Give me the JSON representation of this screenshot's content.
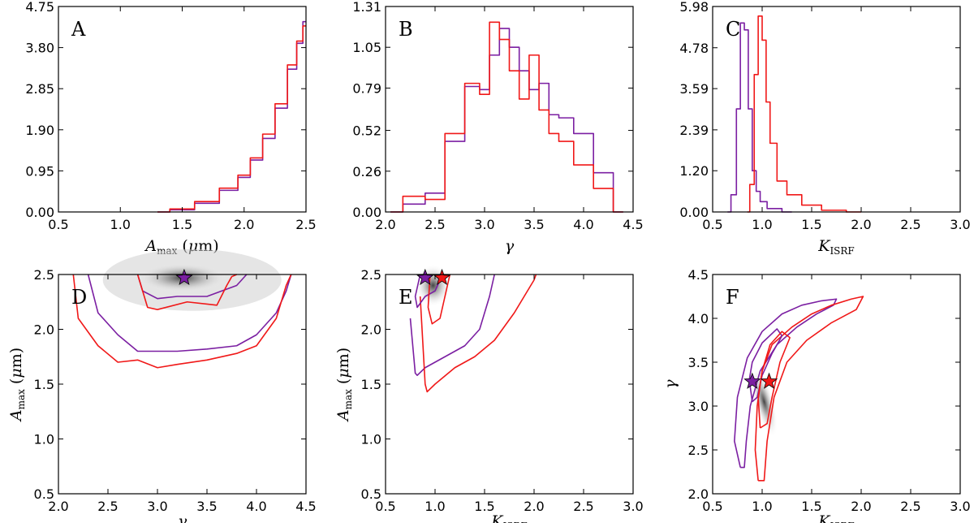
{
  "colors": {
    "purple": "#7b1fa2",
    "red": "#f01818",
    "frame": "#000000"
  },
  "axis_labels": {
    "amax_sym": "A",
    "amax_sub": "max",
    "amax_unit_open": " (",
    "amax_unit_mu": "μ",
    "amax_unit_rest": "m)",
    "gamma": "γ",
    "kisrf_sym": "K",
    "kisrf_sub": "ISRF"
  },
  "chart_data": [
    {
      "id": "A",
      "type": "line",
      "panel_label": "A",
      "xlim": [
        0.5,
        2.5
      ],
      "ylim": [
        0,
        4.75
      ],
      "xticks": [
        "0.5",
        "1.0",
        "1.5",
        "2.0",
        "2.5"
      ],
      "yticks": [
        "0.00",
        "0.95",
        "1.90",
        "2.85",
        "3.80",
        "4.75"
      ],
      "series": [
        {
          "name": "purple",
          "color": "purple",
          "x": [
            1.3,
            1.5,
            1.7,
            1.9,
            2.0,
            2.1,
            2.2,
            2.3,
            2.4,
            2.45,
            2.5
          ],
          "y": [
            0.0,
            0.05,
            0.2,
            0.5,
            0.8,
            1.2,
            1.7,
            2.4,
            3.3,
            3.9,
            4.4
          ]
        },
        {
          "name": "red",
          "color": "red",
          "x": [
            1.3,
            1.5,
            1.7,
            1.9,
            2.0,
            2.1,
            2.2,
            2.3,
            2.4,
            2.45,
            2.5
          ],
          "y": [
            0.0,
            0.07,
            0.24,
            0.55,
            0.85,
            1.25,
            1.8,
            2.5,
            3.4,
            3.95,
            4.3
          ]
        }
      ]
    },
    {
      "id": "B",
      "type": "line",
      "panel_label": "B",
      "xlim": [
        2.0,
        4.5
      ],
      "ylim": [
        0,
        1.31
      ],
      "xticks": [
        "2.0",
        "2.5",
        "3.0",
        "3.5",
        "4.0",
        "4.5"
      ],
      "yticks": [
        "0.00",
        "0.26",
        "0.52",
        "0.79",
        "1.05",
        "1.31"
      ],
      "series": [
        {
          "name": "purple",
          "color": "purple",
          "x": [
            2.05,
            2.3,
            2.5,
            2.7,
            2.9,
            3.0,
            3.1,
            3.2,
            3.3,
            3.4,
            3.5,
            3.6,
            3.7,
            3.8,
            4.0,
            4.2,
            4.4
          ],
          "y": [
            0.0,
            0.05,
            0.12,
            0.45,
            0.8,
            0.78,
            1.0,
            1.17,
            1.05,
            0.9,
            0.78,
            0.82,
            0.62,
            0.6,
            0.5,
            0.25,
            0.0
          ]
        },
        {
          "name": "red",
          "color": "red",
          "x": [
            2.05,
            2.3,
            2.5,
            2.7,
            2.9,
            3.0,
            3.1,
            3.2,
            3.3,
            3.4,
            3.5,
            3.6,
            3.7,
            3.8,
            4.0,
            4.2,
            4.4
          ],
          "y": [
            0.0,
            0.1,
            0.08,
            0.5,
            0.82,
            0.75,
            1.21,
            1.1,
            0.9,
            0.72,
            1.0,
            0.65,
            0.5,
            0.45,
            0.3,
            0.15,
            0.0
          ]
        }
      ]
    },
    {
      "id": "C",
      "type": "line",
      "panel_label": "C",
      "xlim": [
        0.5,
        3.0
      ],
      "ylim": [
        0,
        5.98
      ],
      "xticks": [
        "0.5",
        "1.0",
        "1.5",
        "2.0",
        "2.5",
        "3.0"
      ],
      "yticks": [
        "0.00",
        "1.20",
        "2.39",
        "3.59",
        "4.78",
        "5.98"
      ],
      "series": [
        {
          "name": "purple",
          "color": "purple",
          "x": [
            0.65,
            0.72,
            0.76,
            0.8,
            0.84,
            0.88,
            0.92,
            0.96,
            1.0,
            1.1,
            1.3
          ],
          "y": [
            0.0,
            0.5,
            3.0,
            5.5,
            5.3,
            3.0,
            1.2,
            0.6,
            0.3,
            0.1,
            0.0
          ]
        },
        {
          "name": "red",
          "color": "red",
          "x": [
            0.85,
            0.9,
            0.94,
            0.98,
            1.02,
            1.06,
            1.1,
            1.2,
            1.3,
            1.5,
            1.7,
            2.0
          ],
          "y": [
            0.0,
            0.8,
            4.0,
            5.7,
            5.0,
            3.2,
            2.0,
            0.9,
            0.5,
            0.2,
            0.05,
            0.0
          ]
        }
      ]
    },
    {
      "id": "D",
      "type": "line",
      "panel_label": "D",
      "xlim": [
        2.0,
        4.5
      ],
      "ylim": [
        0.5,
        2.5
      ],
      "xticks": [
        "2.0",
        "2.5",
        "3.0",
        "3.5",
        "4.0",
        "4.5"
      ],
      "yticks": [
        "0.5",
        "1.0",
        "1.5",
        "2.0",
        "2.5"
      ],
      "series": [
        {
          "name": "purple-outer",
          "color": "purple",
          "x": [
            2.3,
            2.4,
            2.6,
            2.8,
            3.0,
            3.2,
            3.5,
            3.8,
            4.0,
            4.2,
            4.3,
            4.35
          ],
          "y": [
            2.5,
            2.15,
            1.95,
            1.8,
            1.8,
            1.8,
            1.82,
            1.85,
            1.95,
            2.15,
            2.35,
            2.5
          ]
        },
        {
          "name": "red-outer",
          "color": "red",
          "x": [
            2.15,
            2.2,
            2.4,
            2.6,
            2.8,
            3.0,
            3.2,
            3.5,
            3.8,
            4.0,
            4.2,
            4.3,
            4.35
          ],
          "y": [
            2.5,
            2.1,
            1.85,
            1.7,
            1.72,
            1.65,
            1.68,
            1.72,
            1.78,
            1.85,
            2.1,
            2.4,
            2.5
          ]
        },
        {
          "name": "purple-inner",
          "color": "purple",
          "x": [
            2.8,
            2.85,
            3.0,
            3.2,
            3.5,
            3.8,
            3.9
          ],
          "y": [
            2.5,
            2.35,
            2.28,
            2.3,
            2.3,
            2.4,
            2.5
          ]
        },
        {
          "name": "red-inner",
          "color": "red",
          "x": [
            2.8,
            2.9,
            3.0,
            3.3,
            3.6,
            3.7,
            3.75,
            3.8
          ],
          "y": [
            2.5,
            2.2,
            2.18,
            2.25,
            2.22,
            2.4,
            2.48,
            2.5
          ]
        }
      ],
      "markers": [
        {
          "color": "purple",
          "x": 3.27,
          "y": 2.47
        }
      ]
    },
    {
      "id": "E",
      "type": "line",
      "panel_label": "E",
      "xlim": [
        0.5,
        3.0
      ],
      "ylim": [
        0.5,
        2.5
      ],
      "xticks": [
        "0.5",
        "1.0",
        "1.5",
        "2.0",
        "2.5",
        "3.0"
      ],
      "yticks": [
        "0.5",
        "1.0",
        "1.5",
        "2.0",
        "2.5"
      ],
      "series": [
        {
          "name": "purple-outer",
          "color": "purple",
          "x": [
            0.75,
            0.8,
            0.82,
            0.9,
            1.1,
            1.3,
            1.45,
            1.55,
            1.6
          ],
          "y": [
            2.1,
            1.6,
            1.58,
            1.65,
            1.75,
            1.85,
            2.0,
            2.3,
            2.5
          ]
        },
        {
          "name": "red-outer",
          "color": "red",
          "x": [
            0.85,
            0.9,
            0.92,
            1.0,
            1.2,
            1.4,
            1.6,
            1.8,
            2.0,
            2.02
          ],
          "y": [
            2.3,
            1.5,
            1.43,
            1.5,
            1.65,
            1.75,
            1.9,
            2.15,
            2.45,
            2.5
          ]
        },
        {
          "name": "purple-inner",
          "color": "purple",
          "x": [
            0.85,
            0.8,
            0.82,
            0.9,
            1.0,
            1.05,
            1.1
          ],
          "y": [
            2.5,
            2.3,
            2.2,
            2.3,
            2.35,
            2.45,
            2.5
          ]
        },
        {
          "name": "red-inner",
          "color": "red",
          "x": [
            0.95,
            0.93,
            0.97,
            1.05,
            1.1,
            1.15
          ],
          "y": [
            2.5,
            2.2,
            2.05,
            2.1,
            2.3,
            2.5
          ]
        }
      ],
      "markers": [
        {
          "color": "purple",
          "x": 0.9,
          "y": 2.47
        },
        {
          "color": "red",
          "x": 1.07,
          "y": 2.47
        }
      ]
    },
    {
      "id": "F",
      "type": "line",
      "panel_label": "F",
      "xlim": [
        0.5,
        3.0
      ],
      "ylim": [
        2.0,
        4.5
      ],
      "xticks": [
        "0.5",
        "1.0",
        "1.5",
        "2.0",
        "2.5",
        "3.0"
      ],
      "yticks": [
        "2.0",
        "2.5",
        "3.0",
        "3.5",
        "4.0",
        "4.5"
      ],
      "series": [
        {
          "name": "purple-outer",
          "color": "purple",
          "x": [
            0.78,
            0.72,
            0.75,
            0.85,
            1.0,
            1.2,
            1.4,
            1.6,
            1.75,
            1.72,
            1.55,
            1.35,
            1.15,
            0.98,
            0.88,
            0.84,
            0.82,
            0.78
          ],
          "y": [
            2.3,
            2.6,
            3.1,
            3.55,
            3.85,
            4.05,
            4.15,
            4.2,
            4.22,
            4.15,
            4.05,
            3.9,
            3.7,
            3.4,
            3.0,
            2.6,
            2.3,
            2.3
          ]
        },
        {
          "name": "red-outer",
          "color": "red",
          "x": [
            0.96,
            0.93,
            0.95,
            1.0,
            1.1,
            1.3,
            1.5,
            1.7,
            1.9,
            2.02,
            1.95,
            1.7,
            1.45,
            1.25,
            1.12,
            1.05,
            1.02,
            0.96
          ],
          "y": [
            2.15,
            2.5,
            3.0,
            3.4,
            3.7,
            3.9,
            4.05,
            4.15,
            4.22,
            4.25,
            4.1,
            3.95,
            3.75,
            3.5,
            3.1,
            2.6,
            2.15,
            2.15
          ]
        },
        {
          "name": "purple-inner",
          "color": "purple",
          "x": [
            0.9,
            0.87,
            0.9,
            1.0,
            1.15,
            1.2,
            1.1,
            1.0,
            0.95,
            0.9
          ],
          "y": [
            3.05,
            3.3,
            3.5,
            3.72,
            3.88,
            3.8,
            3.6,
            3.35,
            3.1,
            3.05
          ]
        },
        {
          "name": "red-inner",
          "color": "red",
          "x": [
            0.98,
            0.96,
            1.0,
            1.08,
            1.2,
            1.28,
            1.18,
            1.1,
            1.05,
            0.98
          ],
          "y": [
            2.75,
            3.1,
            3.4,
            3.7,
            3.85,
            3.78,
            3.5,
            3.1,
            2.8,
            2.75
          ]
        }
      ],
      "markers": [
        {
          "color": "purple",
          "x": 0.9,
          "y": 3.28
        },
        {
          "color": "red",
          "x": 1.07,
          "y": 3.28
        }
      ]
    }
  ]
}
